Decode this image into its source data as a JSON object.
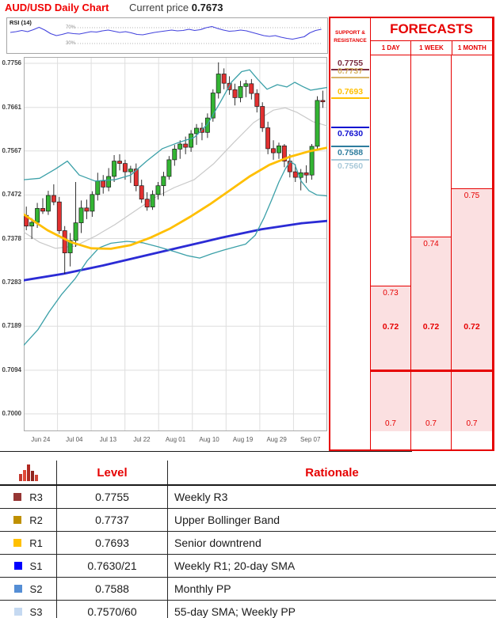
{
  "header": {
    "title": "AUD/USD Daily Chart",
    "current_price_label": "Current price",
    "current_price": "0.7673"
  },
  "chart_data": {
    "type": "candlestick",
    "title": "AUD/USD Daily Chart",
    "x_labels": [
      "Jun 24",
      "Jul 04",
      "Jul 13",
      "Jul 22",
      "Aug 01",
      "Aug 10",
      "Aug 19",
      "Aug 29",
      "Sep 07"
    ],
    "y_labels": [
      "0.7756",
      "0.7661",
      "0.7567",
      "0.7472",
      "0.7378",
      "0.7283",
      "0.7189",
      "0.7094",
      "0.7000"
    ],
    "ylim": [
      0.7,
      0.7756
    ],
    "grid": true,
    "colors": {
      "up": "#33B533",
      "down": "#E23030",
      "bollinger": "#3BA0A8",
      "sma20": "#C9C9C9",
      "sma55": "#FFBF00",
      "sma_long": "#2B2BD5",
      "rsi": "#4242DD",
      "accent_red": "#E60000",
      "forecast_pink": "#FBE0E1"
    },
    "candles": [
      [
        0.7428,
        0.7447,
        0.7396,
        0.7405
      ],
      [
        0.7405,
        0.7422,
        0.7377,
        0.7413
      ],
      [
        0.7413,
        0.7455,
        0.7401,
        0.7443
      ],
      [
        0.7443,
        0.7465,
        0.7431,
        0.7437
      ],
      [
        0.7437,
        0.7481,
        0.7429,
        0.7471
      ],
      [
        0.7471,
        0.7495,
        0.745,
        0.7457
      ],
      [
        0.7457,
        0.7468,
        0.7388,
        0.7395
      ],
      [
        0.7395,
        0.7405,
        0.7302,
        0.7347
      ],
      [
        0.7347,
        0.739,
        0.7318,
        0.7374
      ],
      [
        0.7374,
        0.75,
        0.736,
        0.7412
      ],
      [
        0.7412,
        0.746,
        0.739,
        0.7444
      ],
      [
        0.7444,
        0.7462,
        0.742,
        0.7437
      ],
      [
        0.7437,
        0.748,
        0.7425,
        0.7473
      ],
      [
        0.7473,
        0.752,
        0.746,
        0.7502
      ],
      [
        0.7502,
        0.7515,
        0.7475,
        0.7489
      ],
      [
        0.7489,
        0.753,
        0.748,
        0.7512
      ],
      [
        0.7512,
        0.7558,
        0.75,
        0.7545
      ],
      [
        0.7545,
        0.756,
        0.7525,
        0.754
      ],
      [
        0.754,
        0.7548,
        0.7505,
        0.7522
      ],
      [
        0.7522,
        0.7535,
        0.7498,
        0.7528
      ],
      [
        0.7528,
        0.754,
        0.748,
        0.7492
      ],
      [
        0.7492,
        0.7505,
        0.7455,
        0.7463
      ],
      [
        0.7463,
        0.7478,
        0.7438,
        0.7446
      ],
      [
        0.7446,
        0.7482,
        0.744,
        0.7473
      ],
      [
        0.7473,
        0.75,
        0.7462,
        0.7492
      ],
      [
        0.7492,
        0.7522,
        0.747,
        0.7512
      ],
      [
        0.7512,
        0.7556,
        0.7505,
        0.7548
      ],
      [
        0.7548,
        0.758,
        0.7535,
        0.7571
      ],
      [
        0.7571,
        0.759,
        0.755,
        0.7582
      ],
      [
        0.7582,
        0.7598,
        0.756,
        0.7575
      ],
      [
        0.7575,
        0.7612,
        0.7565,
        0.7604
      ],
      [
        0.7604,
        0.7625,
        0.758,
        0.7616
      ],
      [
        0.7616,
        0.7628,
        0.759,
        0.7607
      ],
      [
        0.7607,
        0.7648,
        0.7595,
        0.7638
      ],
      [
        0.7638,
        0.77,
        0.763,
        0.7692
      ],
      [
        0.7692,
        0.7758,
        0.768,
        0.7733
      ],
      [
        0.7733,
        0.7745,
        0.77,
        0.7713
      ],
      [
        0.7713,
        0.7728,
        0.7688,
        0.7699
      ],
      [
        0.7699,
        0.7712,
        0.7665,
        0.7682
      ],
      [
        0.7682,
        0.7718,
        0.7672,
        0.7706
      ],
      [
        0.7706,
        0.772,
        0.7683,
        0.7712
      ],
      [
        0.7712,
        0.7722,
        0.7678,
        0.7691
      ],
      [
        0.7691,
        0.77,
        0.765,
        0.7663
      ],
      [
        0.7663,
        0.7672,
        0.7608,
        0.7617
      ],
      [
        0.7617,
        0.763,
        0.756,
        0.7572
      ],
      [
        0.7572,
        0.759,
        0.7548,
        0.7563
      ],
      [
        0.7563,
        0.7585,
        0.755,
        0.7578
      ],
      [
        0.7578,
        0.7582,
        0.7532,
        0.7545
      ],
      [
        0.7545,
        0.756,
        0.751,
        0.7522
      ],
      [
        0.7522,
        0.7538,
        0.75,
        0.751
      ],
      [
        0.751,
        0.7528,
        0.7482,
        0.752
      ],
      [
        0.752,
        0.7536,
        0.7498,
        0.7515
      ],
      [
        0.7515,
        0.7582,
        0.7505,
        0.7577
      ],
      [
        0.7577,
        0.7685,
        0.757,
        0.7676
      ],
      [
        0.7676,
        0.7697,
        0.766,
        0.7673
      ]
    ],
    "overlays": {
      "bollinger_upper": [
        [
          30,
          0.7505
        ],
        [
          50,
          0.7508
        ],
        [
          70,
          0.7528
        ],
        [
          85,
          0.7545
        ],
        [
          100,
          0.7515
        ],
        [
          120,
          0.7502
        ],
        [
          145,
          0.7505
        ],
        [
          165,
          0.7515
        ],
        [
          185,
          0.7545
        ],
        [
          205,
          0.7572
        ],
        [
          225,
          0.7585
        ],
        [
          245,
          0.7596
        ],
        [
          262,
          0.7625
        ],
        [
          278,
          0.7672
        ],
        [
          292,
          0.7715
        ],
        [
          305,
          0.7738
        ],
        [
          315,
          0.7742
        ],
        [
          325,
          0.7722
        ],
        [
          337,
          0.77
        ],
        [
          350,
          0.771
        ],
        [
          362,
          0.7705
        ],
        [
          372,
          0.7715
        ],
        [
          382,
          0.7706
        ],
        [
          392,
          0.7698
        ],
        [
          403,
          0.7701
        ],
        [
          413,
          0.7704
        ]
      ],
      "bollinger_lower": [
        [
          30,
          0.7148
        ],
        [
          48,
          0.7182
        ],
        [
          62,
          0.722
        ],
        [
          78,
          0.7258
        ],
        [
          95,
          0.7292
        ],
        [
          110,
          0.733
        ],
        [
          125,
          0.7358
        ],
        [
          140,
          0.7368
        ],
        [
          160,
          0.7372
        ],
        [
          180,
          0.7369
        ],
        [
          200,
          0.736
        ],
        [
          220,
          0.735
        ],
        [
          237,
          0.7341
        ],
        [
          252,
          0.7336
        ],
        [
          267,
          0.7345
        ],
        [
          282,
          0.7353
        ],
        [
          297,
          0.736
        ],
        [
          310,
          0.7366
        ],
        [
          322,
          0.7385
        ],
        [
          333,
          0.7422
        ],
        [
          343,
          0.7462
        ],
        [
          352,
          0.75
        ],
        [
          360,
          0.7528
        ],
        [
          366,
          0.7544
        ],
        [
          372,
          0.7538
        ],
        [
          380,
          0.7502
        ],
        [
          390,
          0.7481
        ],
        [
          400,
          0.7472
        ],
        [
          413,
          0.747
        ]
      ],
      "sma20": [
        [
          30,
          0.7392
        ],
        [
          50,
          0.737
        ],
        [
          70,
          0.7357
        ],
        [
          95,
          0.7362
        ],
        [
          120,
          0.7383
        ],
        [
          145,
          0.7408
        ],
        [
          170,
          0.7437
        ],
        [
          195,
          0.7466
        ],
        [
          220,
          0.7488
        ],
        [
          245,
          0.7505
        ],
        [
          270,
          0.754
        ],
        [
          295,
          0.7585
        ],
        [
          320,
          0.7628
        ],
        [
          345,
          0.7655
        ],
        [
          360,
          0.766
        ],
        [
          375,
          0.765
        ],
        [
          395,
          0.763
        ],
        [
          413,
          0.7621
        ]
      ],
      "sma55": [
        [
          30,
          0.743
        ],
        [
          60,
          0.7396
        ],
        [
          90,
          0.737
        ],
        [
          115,
          0.7357
        ],
        [
          140,
          0.7356
        ],
        [
          165,
          0.7364
        ],
        [
          190,
          0.738
        ],
        [
          215,
          0.74
        ],
        [
          240,
          0.7425
        ],
        [
          265,
          0.7452
        ],
        [
          290,
          0.7482
        ],
        [
          315,
          0.7512
        ],
        [
          340,
          0.7537
        ],
        [
          365,
          0.7554
        ],
        [
          390,
          0.7566
        ],
        [
          413,
          0.7574
        ]
      ],
      "sma_long": [
        [
          30,
          0.7288
        ],
        [
          80,
          0.7302
        ],
        [
          130,
          0.732
        ],
        [
          180,
          0.734
        ],
        [
          230,
          0.736
        ],
        [
          280,
          0.738
        ],
        [
          330,
          0.7398
        ],
        [
          380,
          0.7411
        ],
        [
          413,
          0.7416
        ]
      ]
    },
    "rsi": {
      "label": "RSI (14)",
      "upper_level": "70%",
      "lower_level": "30%",
      "series": [
        58,
        60,
        63,
        60,
        65,
        71,
        64,
        55,
        50,
        53,
        57,
        55,
        54,
        57,
        60,
        59,
        62,
        64,
        61,
        58,
        60,
        57,
        53,
        52,
        55,
        58,
        60,
        62,
        64,
        62,
        63,
        66,
        63,
        65,
        70,
        73,
        68,
        64,
        61,
        62,
        64,
        62,
        58,
        54,
        50,
        48,
        50,
        46,
        43,
        41,
        44,
        47,
        57,
        63,
        66
      ]
    }
  },
  "sr_panel": {
    "header": "SUPPORT & RESISTANCE",
    "levels": [
      {
        "value": "0.7755",
        "price": 0.7755,
        "color": "#7A2B3F",
        "kind": "resistance"
      },
      {
        "value": "0.7737",
        "price": 0.7737,
        "color": "#D8B56A",
        "kind": "resistance"
      },
      {
        "value": "0.7693",
        "price": 0.7693,
        "color": "#FFBF00",
        "kind": "resistance"
      },
      {
        "value": "0.7630",
        "price": 0.763,
        "color": "#0F0FD0",
        "kind": "support"
      },
      {
        "value": "0.7588",
        "price": 0.7588,
        "color": "#2E7D9E",
        "kind": "support"
      },
      {
        "value": "0.7560",
        "price": 0.756,
        "color": "#A9C9D9",
        "kind": "support"
      }
    ]
  },
  "forecasts": {
    "title": "FORECASTS",
    "columns": [
      {
        "label": "1 DAY",
        "high": "0.73",
        "pivot": "0.72",
        "low": "0.7"
      },
      {
        "label": "1 WEEK",
        "high": "0.74",
        "pivot": "0.72",
        "low": "0.7"
      },
      {
        "label": "1 MONTH",
        "high": "0.75",
        "pivot": "0.72",
        "low": "0.7"
      }
    ]
  },
  "table": {
    "level_header": "Level",
    "rationale_header": "Rationale",
    "rows": [
      {
        "name": "R3",
        "color": "#963634",
        "level": "0.7755",
        "rationale": "Weekly R3"
      },
      {
        "name": "R2",
        "color": "#BF9000",
        "level": "0.7737",
        "rationale": "Upper Bollinger Band"
      },
      {
        "name": "R1",
        "color": "#FFC000",
        "level": "0.7693",
        "rationale": "Senior downtrend"
      },
      {
        "name": "S1",
        "color": "#0000FF",
        "level": "0.7630/21",
        "rationale": "Weekly R1; 20-day SMA"
      },
      {
        "name": "S2",
        "color": "#558ED5",
        "level": "0.7588",
        "rationale": "Monthly PP"
      },
      {
        "name": "S3",
        "color": "#C5D9F1",
        "level": "0.7570/60",
        "rationale": "55-day SMA; Weekly PP"
      }
    ]
  }
}
